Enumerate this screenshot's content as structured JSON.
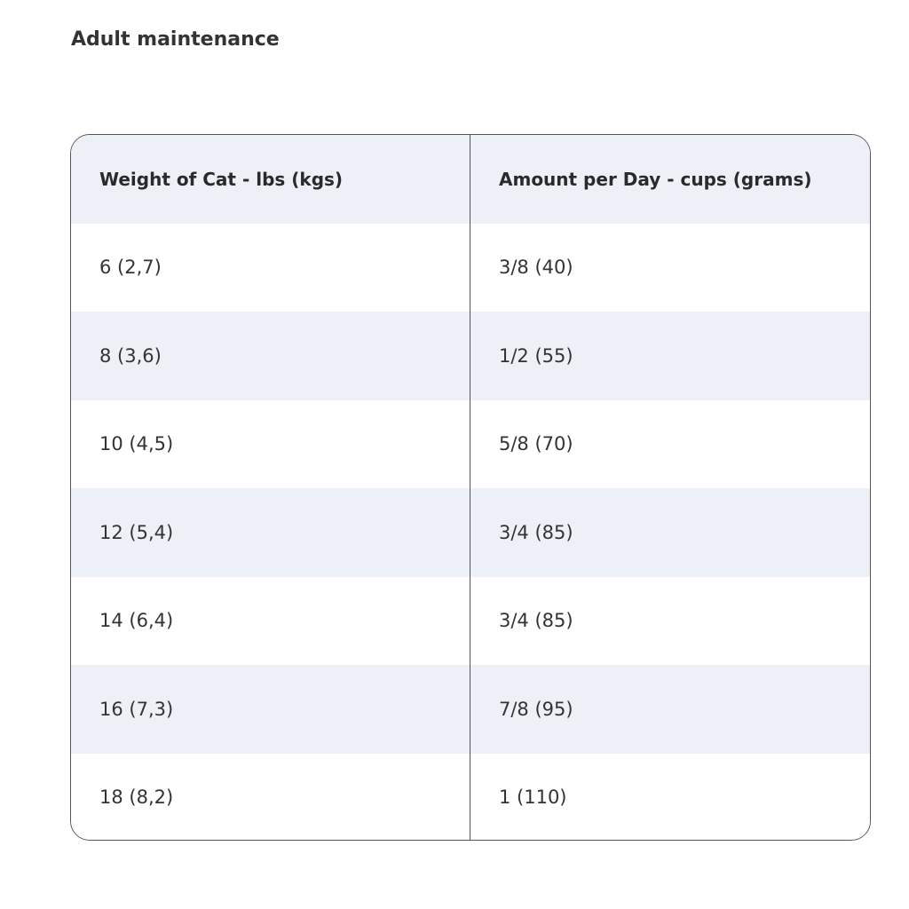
{
  "heading": "Adult maintenance",
  "table": {
    "header": [
      "Weight of Cat - lbs (kgs)",
      "Amount per Day - cups (grams)"
    ],
    "rows": [
      [
        "6 (2,7)",
        "3/8 (40)"
      ],
      [
        "8 (3,6)",
        "1/2 (55)"
      ],
      [
        "10 (4,5)",
        "5/8 (70)"
      ],
      [
        "12 (5,4)",
        "3/4 (85)"
      ],
      [
        "14 (6,4)",
        "3/4 (85)"
      ],
      [
        "16 (7,3)",
        "7/8 (95)"
      ],
      [
        "18 (8,2)",
        "1 (110)"
      ]
    ]
  }
}
